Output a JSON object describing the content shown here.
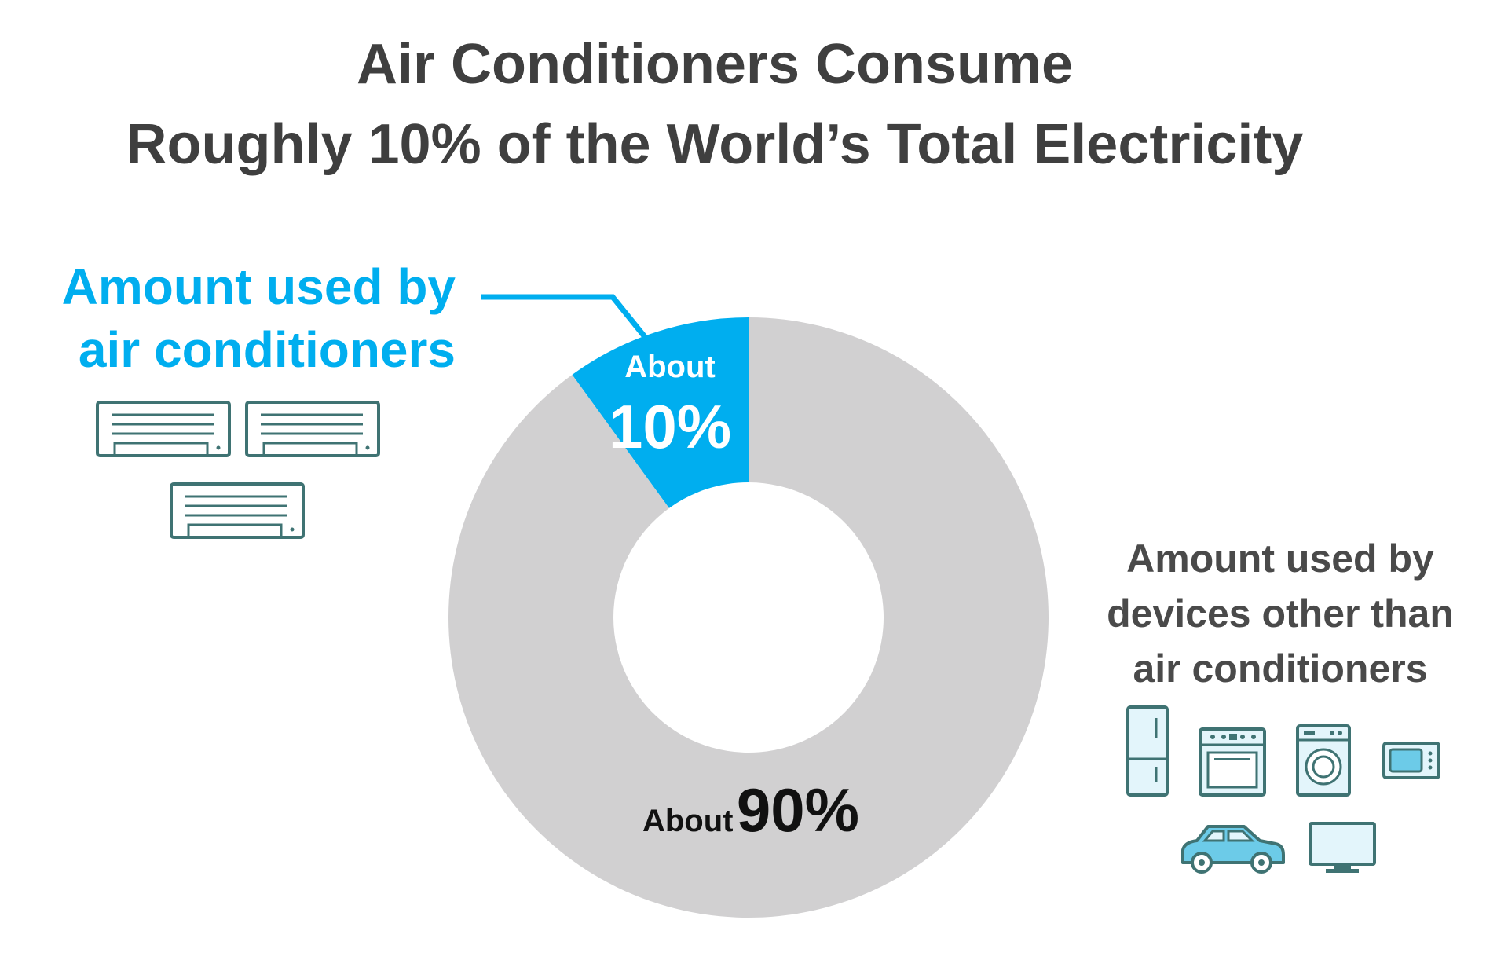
{
  "title_lines": [
    "Air Conditioners Consume",
    "Roughly 10% of the World’s Total Electricity"
  ],
  "labels": {
    "ac_lines": [
      "Amount used by",
      "air conditioners"
    ],
    "other_lines": [
      "Amount used by",
      "devices other than",
      "air conditioners"
    ]
  },
  "colors": {
    "ac": "#00aeef",
    "other": "#d1d0d1",
    "title": "#3f3f3f",
    "icon_stroke": "#3f7373",
    "icon_fill_light": "#e3f5fb",
    "icon_fill_blue": "#6ccbe8"
  },
  "icons": {
    "left": [
      "air-conditioner-icon",
      "air-conditioner-icon",
      "air-conditioner-icon"
    ],
    "right": [
      "refrigerator-icon",
      "oven-icon",
      "washing-machine-icon",
      "microwave-icon",
      "car-icon",
      "television-icon"
    ]
  },
  "chart_data": {
    "type": "pie",
    "donut": true,
    "slices": [
      {
        "name": "Amount used by air conditioners",
        "value": 10,
        "label_prefix": "About",
        "label_value": "10%"
      },
      {
        "name": "Amount used by devices other than air conditioners",
        "value": 90,
        "label_prefix": "About",
        "label_value": "90%"
      }
    ],
    "title": "Air Conditioners Consume Roughly 10% of the World’s Total Electricity"
  }
}
